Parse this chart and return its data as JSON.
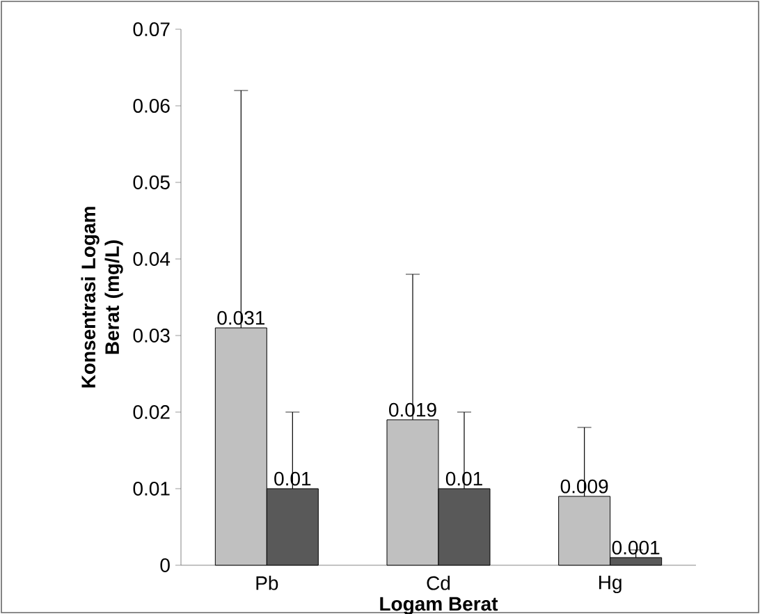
{
  "chart_data": {
    "type": "bar",
    "xlabel": "Logam Berat",
    "ylabel": "Konsentrasi Logam Berat (mg/L)",
    "categories": [
      "Pb",
      "Cd",
      "Hg"
    ],
    "series": [
      {
        "color": "#c0c0c0",
        "values": [
          0.031,
          0.019,
          0.009
        ],
        "errors": [
          [
            0.031,
            0.062
          ],
          [
            0.019,
            0.038
          ],
          [
            0.009,
            0.018
          ]
        ]
      },
      {
        "color": "#595959",
        "values": [
          0.01,
          0.01,
          0.001
        ],
        "errors": [
          [
            0.01,
            0.02
          ],
          [
            0.01,
            0.02
          ],
          [
            0.001,
            0.002
          ]
        ]
      }
    ],
    "ylim": [
      0,
      0.07
    ],
    "yticks": [
      0,
      0.01,
      0.02,
      0.03,
      0.04,
      0.05,
      0.06,
      0.07
    ],
    "data_labels": true,
    "grid": false
  }
}
